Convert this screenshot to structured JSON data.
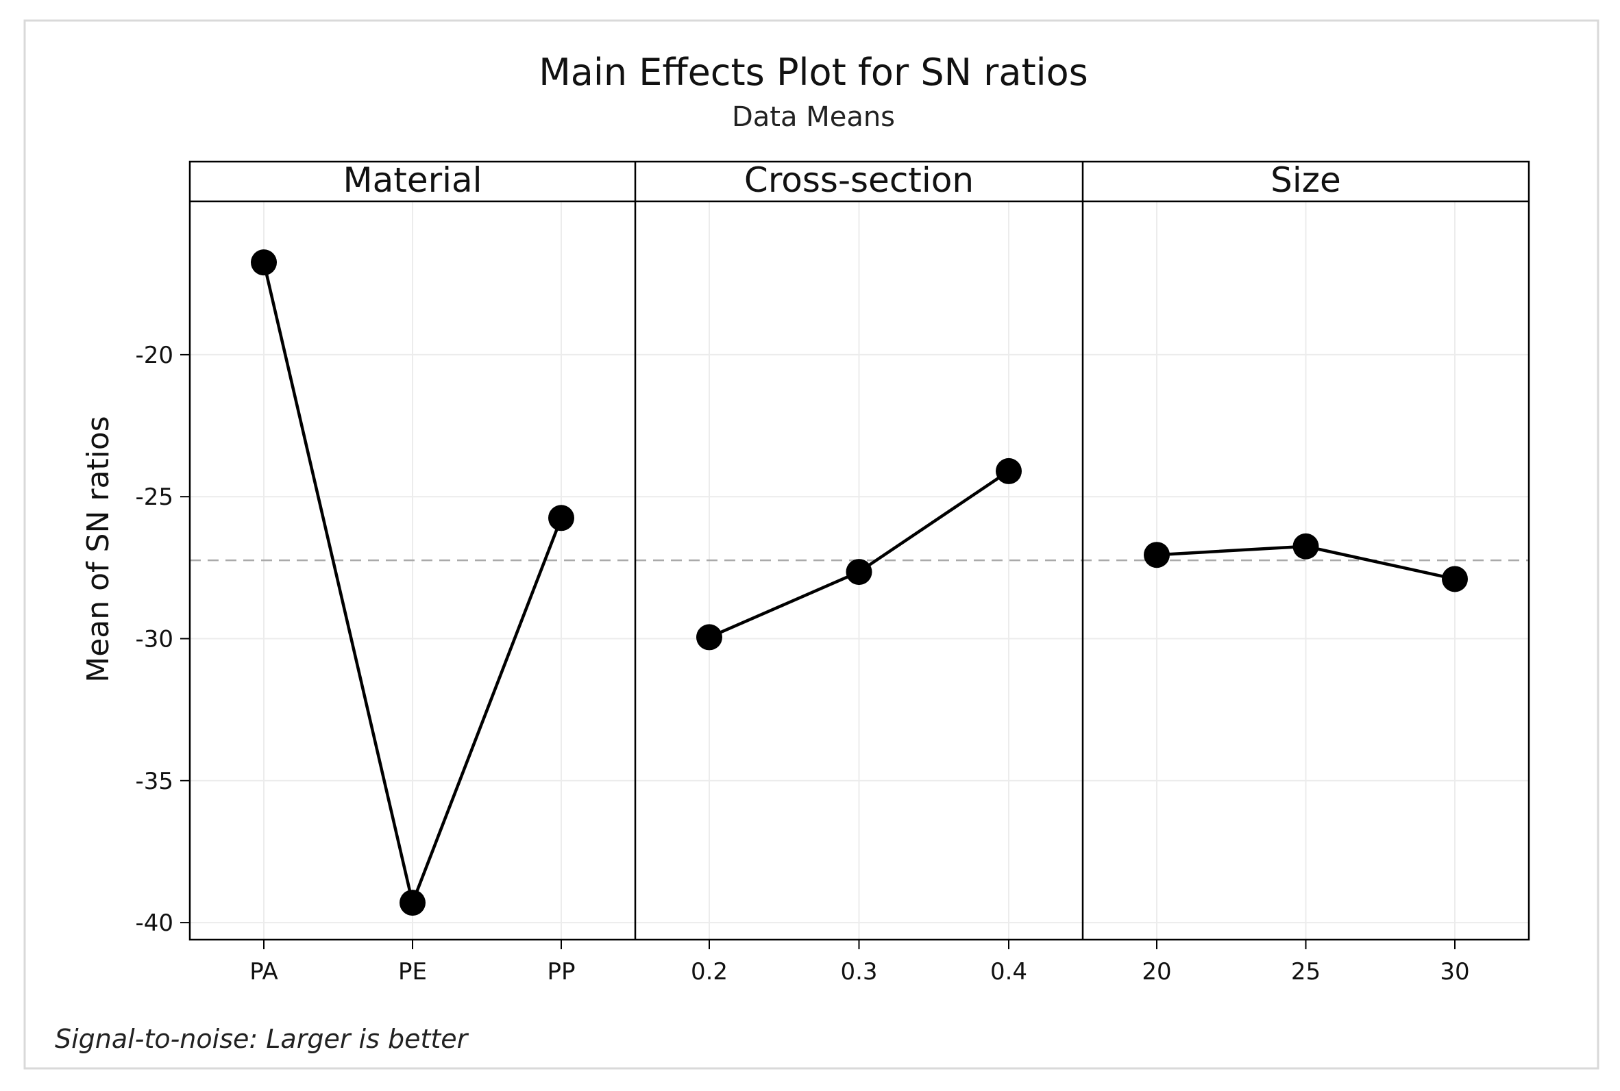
{
  "chart_data": {
    "type": "line",
    "title": "Main Effects Plot for SN ratios",
    "subtitle": "Data Means",
    "ylabel": "Mean of SN ratios",
    "ylim": [
      -40.6,
      -14.6
    ],
    "yticks": [
      -20,
      -25,
      -30,
      -35,
      -40
    ],
    "ytick_labels": [
      "-20",
      "-25",
      "-30",
      "-35",
      "-40"
    ],
    "grid": true,
    "reference_line": -27.24,
    "footnote": "Signal-to-noise: Larger is better",
    "panels": [
      {
        "name": "Material",
        "categories": [
          "PA",
          "PE",
          "PP"
        ],
        "values": [
          -16.75,
          -39.3,
          -25.75
        ]
      },
      {
        "name": "Cross-section",
        "categories": [
          "0.2",
          "0.3",
          "0.4"
        ],
        "values": [
          -29.95,
          -27.65,
          -24.1
        ]
      },
      {
        "name": "Size",
        "categories": [
          "20",
          "25",
          "30"
        ],
        "values": [
          -27.05,
          -26.75,
          -27.9
        ]
      }
    ],
    "colors": {
      "line": "#000000",
      "reference": "#aaaaaa",
      "grid": "#ececec"
    }
  }
}
